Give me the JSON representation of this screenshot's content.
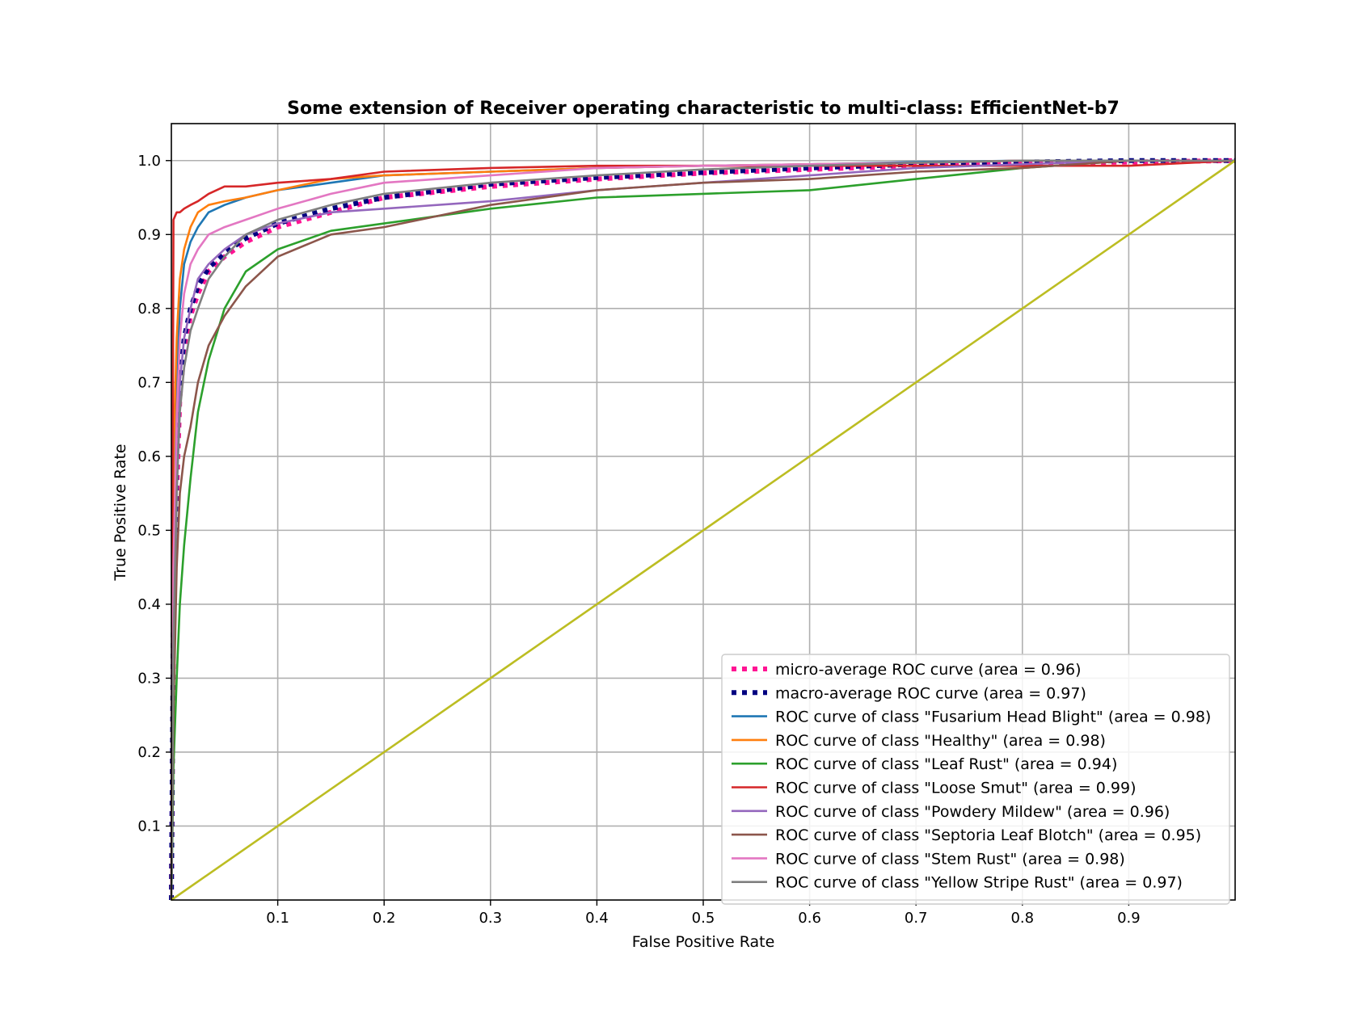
{
  "chart_data": {
    "type": "line",
    "title": "Some extension of Receiver operating characteristic to multi-class: EfficientNet-b7",
    "xlabel": "False Positive Rate",
    "ylabel": "True Positive Rate",
    "xlim": [
      0.0,
      1.0
    ],
    "ylim": [
      0.0,
      1.05
    ],
    "x_ticks": [
      0.1,
      0.2,
      0.3,
      0.4,
      0.5,
      0.6,
      0.7,
      0.8,
      0.9
    ],
    "y_ticks": [
      0.1,
      0.2,
      0.3,
      0.4,
      0.5,
      0.6,
      0.7,
      0.8,
      0.9,
      1.0
    ],
    "grid": true,
    "legend_position": "lower-right",
    "series": [
      {
        "name": "micro-average ROC curve (area = 0.96)",
        "color": "#ff1493",
        "style": "dotted",
        "x": [
          0,
          0.002,
          0.005,
          0.008,
          0.012,
          0.018,
          0.025,
          0.035,
          0.05,
          0.07,
          0.1,
          0.15,
          0.2,
          0.3,
          0.4,
          0.5,
          0.6,
          0.7,
          0.8,
          0.9,
          1.0
        ],
        "y": [
          0,
          0.35,
          0.55,
          0.68,
          0.74,
          0.79,
          0.82,
          0.85,
          0.87,
          0.89,
          0.91,
          0.93,
          0.95,
          0.965,
          0.975,
          0.983,
          0.988,
          0.993,
          0.996,
          0.998,
          1.0
        ]
      },
      {
        "name": "macro-average ROC curve (area = 0.97)",
        "color": "#000080",
        "style": "dotted",
        "x": [
          0,
          0.002,
          0.005,
          0.008,
          0.012,
          0.018,
          0.025,
          0.035,
          0.05,
          0.07,
          0.1,
          0.15,
          0.2,
          0.3,
          0.4,
          0.5,
          0.6,
          0.7,
          0.8,
          0.9,
          1.0
        ],
        "y": [
          0,
          0.4,
          0.6,
          0.7,
          0.76,
          0.8,
          0.83,
          0.855,
          0.875,
          0.895,
          0.915,
          0.935,
          0.95,
          0.968,
          0.977,
          0.984,
          0.99,
          0.995,
          0.998,
          1.0,
          1.0
        ]
      },
      {
        "name": "ROC curve of class \"Fusarium Head Blight\" (area = 0.98)",
        "color": "#1f77b4",
        "style": "solid",
        "x": [
          0,
          0.002,
          0.005,
          0.008,
          0.012,
          0.018,
          0.025,
          0.035,
          0.05,
          0.07,
          0.1,
          0.15,
          0.2,
          0.3,
          0.4,
          0.5,
          0.6,
          0.7,
          0.8,
          0.9,
          1.0
        ],
        "y": [
          0,
          0.5,
          0.7,
          0.8,
          0.86,
          0.89,
          0.91,
          0.93,
          0.94,
          0.95,
          0.96,
          0.97,
          0.98,
          0.985,
          0.99,
          0.993,
          0.995,
          0.998,
          1.0,
          1.0,
          1.0
        ]
      },
      {
        "name": "ROC curve of class \"Healthy\" (area = 0.98)",
        "color": "#ff7f0e",
        "style": "solid",
        "x": [
          0,
          0.002,
          0.005,
          0.008,
          0.012,
          0.018,
          0.025,
          0.035,
          0.05,
          0.07,
          0.1,
          0.15,
          0.2,
          0.3,
          0.4,
          0.5,
          0.6,
          0.7,
          0.8,
          0.9,
          1.0
        ],
        "y": [
          0,
          0.6,
          0.76,
          0.84,
          0.88,
          0.91,
          0.93,
          0.94,
          0.945,
          0.95,
          0.96,
          0.975,
          0.98,
          0.985,
          0.99,
          0.993,
          0.995,
          0.997,
          1.0,
          1.0,
          1.0
        ]
      },
      {
        "name": "ROC curve of class \"Leaf Rust\" (area = 0.94)",
        "color": "#2ca02c",
        "style": "solid",
        "x": [
          0,
          0.002,
          0.005,
          0.008,
          0.012,
          0.018,
          0.025,
          0.035,
          0.05,
          0.07,
          0.1,
          0.15,
          0.2,
          0.3,
          0.4,
          0.5,
          0.6,
          0.7,
          0.8,
          0.9,
          1.0
        ],
        "y": [
          0,
          0.18,
          0.3,
          0.4,
          0.48,
          0.57,
          0.66,
          0.73,
          0.8,
          0.85,
          0.88,
          0.905,
          0.915,
          0.935,
          0.95,
          0.955,
          0.96,
          0.975,
          0.99,
          1.0,
          1.0
        ]
      },
      {
        "name": "ROC curve of class \"Loose Smut\" (area = 0.99)",
        "color": "#d62728",
        "style": "solid",
        "x": [
          0,
          0.002,
          0.005,
          0.008,
          0.012,
          0.018,
          0.025,
          0.035,
          0.05,
          0.07,
          0.1,
          0.15,
          0.2,
          0.3,
          0.4,
          0.5,
          0.6,
          0.7,
          0.8,
          0.9,
          1.0
        ],
        "y": [
          0,
          0.92,
          0.93,
          0.93,
          0.935,
          0.94,
          0.945,
          0.955,
          0.965,
          0.965,
          0.97,
          0.975,
          0.985,
          0.99,
          0.993,
          0.993,
          0.993,
          0.993,
          0.993,
          0.993,
          1.0
        ]
      },
      {
        "name": "ROC curve of class \"Powdery Mildew\" (area = 0.96)",
        "color": "#9467bd",
        "style": "solid",
        "x": [
          0,
          0.002,
          0.005,
          0.008,
          0.012,
          0.018,
          0.025,
          0.035,
          0.05,
          0.07,
          0.1,
          0.15,
          0.2,
          0.3,
          0.4,
          0.5,
          0.6,
          0.7,
          0.8,
          0.9,
          1.0
        ],
        "y": [
          0,
          0.3,
          0.55,
          0.7,
          0.76,
          0.8,
          0.84,
          0.86,
          0.88,
          0.9,
          0.915,
          0.93,
          0.935,
          0.945,
          0.96,
          0.97,
          0.98,
          0.99,
          0.995,
          1.0,
          1.0
        ]
      },
      {
        "name": "ROC curve of class \"Septoria Leaf Blotch\" (area = 0.95)",
        "color": "#8c564b",
        "style": "solid",
        "x": [
          0,
          0.002,
          0.005,
          0.008,
          0.012,
          0.018,
          0.025,
          0.035,
          0.05,
          0.07,
          0.1,
          0.15,
          0.2,
          0.3,
          0.4,
          0.5,
          0.6,
          0.7,
          0.8,
          0.9,
          1.0
        ],
        "y": [
          0,
          0.25,
          0.45,
          0.55,
          0.6,
          0.64,
          0.7,
          0.75,
          0.79,
          0.83,
          0.87,
          0.9,
          0.91,
          0.94,
          0.96,
          0.97,
          0.975,
          0.985,
          0.99,
          1.0,
          1.0
        ]
      },
      {
        "name": "ROC curve of class \"Stem Rust\" (area = 0.98)",
        "color": "#e377c2",
        "style": "solid",
        "x": [
          0,
          0.002,
          0.005,
          0.008,
          0.012,
          0.018,
          0.025,
          0.035,
          0.05,
          0.07,
          0.1,
          0.15,
          0.2,
          0.3,
          0.4,
          0.5,
          0.6,
          0.7,
          0.8,
          0.9,
          1.0
        ],
        "y": [
          0,
          0.45,
          0.65,
          0.76,
          0.82,
          0.86,
          0.88,
          0.9,
          0.91,
          0.92,
          0.935,
          0.955,
          0.97,
          0.98,
          0.99,
          0.993,
          0.995,
          0.997,
          1.0,
          1.0,
          1.0
        ]
      },
      {
        "name": "ROC curve of class \"Yellow Stripe Rust\" (area = 0.97)",
        "color": "#7f7f7f",
        "style": "solid",
        "x": [
          0,
          0.002,
          0.005,
          0.008,
          0.012,
          0.018,
          0.025,
          0.035,
          0.05,
          0.07,
          0.1,
          0.15,
          0.2,
          0.3,
          0.4,
          0.5,
          0.6,
          0.7,
          0.8,
          0.9,
          1.0
        ],
        "y": [
          0,
          0.35,
          0.55,
          0.66,
          0.72,
          0.77,
          0.8,
          0.84,
          0.87,
          0.9,
          0.92,
          0.94,
          0.955,
          0.97,
          0.98,
          0.988,
          0.993,
          0.997,
          1.0,
          1.0,
          1.0
        ]
      },
      {
        "name": "",
        "color": "#bcbd22",
        "style": "solid",
        "legend": false,
        "x": [
          0,
          1
        ],
        "y": [
          0,
          1
        ]
      }
    ]
  }
}
